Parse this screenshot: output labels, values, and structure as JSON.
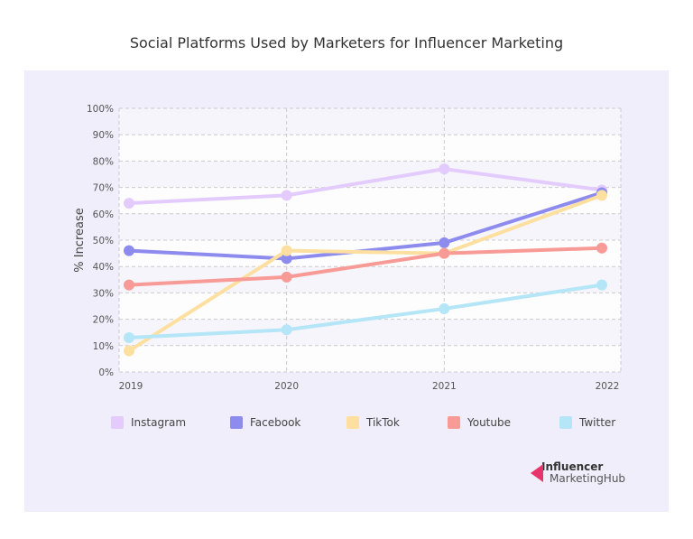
{
  "chart_data": {
    "type": "line",
    "title": "Social Platforms Used by Marketers for Influencer Marketing",
    "xlabel": "",
    "ylabel": "% Increase",
    "categories": [
      "2019",
      "2020",
      "2021",
      "2022"
    ],
    "ylim": [
      0,
      100
    ],
    "yticks": [
      "0%",
      "10%",
      "20%",
      "30%",
      "40%",
      "50%",
      "60%",
      "70%",
      "80%",
      "90%",
      "100%"
    ],
    "grid": true,
    "legend_position": "bottom",
    "series": [
      {
        "name": "Instagram",
        "color": "#e3ccfd",
        "values": [
          64,
          67,
          77,
          69
        ]
      },
      {
        "name": "Facebook",
        "color": "#8e8bef",
        "values": [
          46,
          43,
          49,
          68
        ]
      },
      {
        "name": "TikTok",
        "color": "#fde0a0",
        "values": [
          8,
          46,
          45,
          67
        ]
      },
      {
        "name": "Youtube",
        "color": "#f89a95",
        "values": [
          33,
          36,
          45,
          47
        ]
      },
      {
        "name": "Twitter",
        "color": "#b5e6f7",
        "values": [
          13,
          16,
          24,
          33
        ]
      }
    ]
  },
  "logo": {
    "line1": "Influencer",
    "line2": "MarketingHub",
    "accent": "#e8336d"
  }
}
